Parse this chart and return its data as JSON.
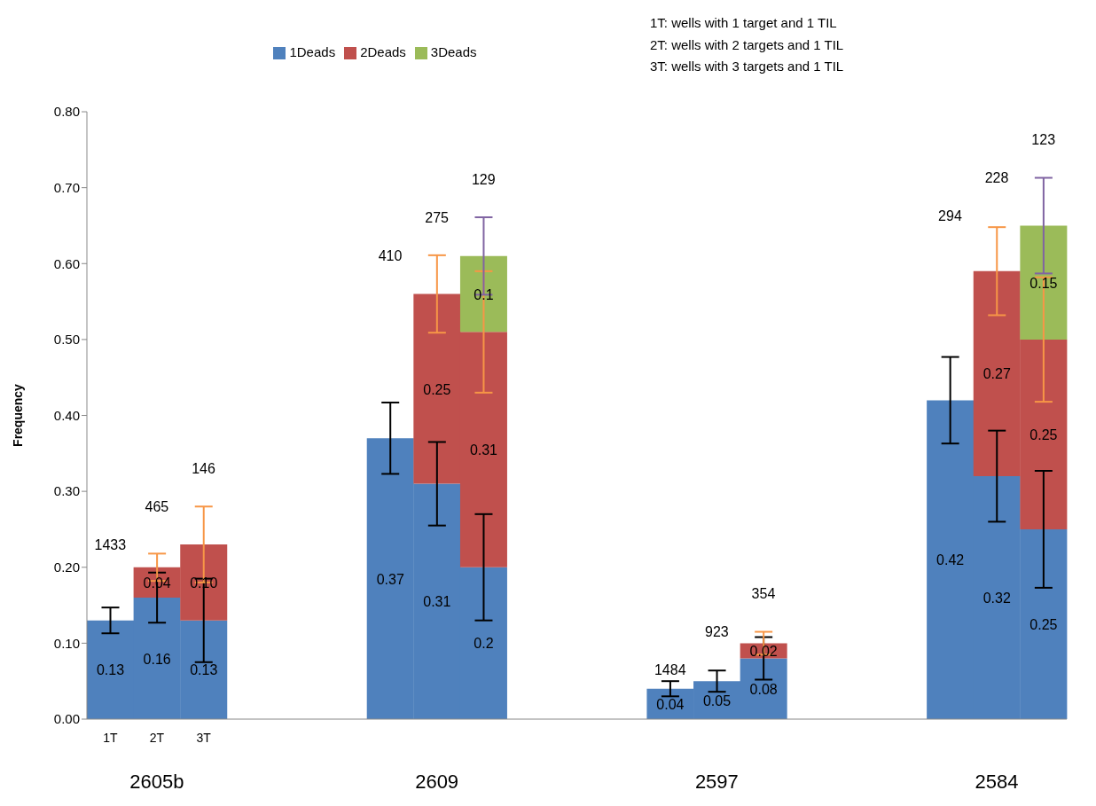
{
  "chart_data": {
    "type": "bar",
    "stacked": true,
    "ylabel": "Frequency",
    "legend": "top",
    "grid": false,
    "categories": [
      "1T",
      "2T",
      "3T",
      null,
      null,
      null,
      null,
      null,
      null,
      null,
      null,
      null,
      null,
      null,
      null,
      null,
      null,
      null,
      null,
      null,
      null
    ],
    "ylim": [
      0,
      0.8
    ],
    "yticks": [
      {
        "value": 0,
        "label": "0.00"
      },
      {
        "value": 0.1,
        "label": "0.10"
      },
      {
        "value": 0.2,
        "label": "0.20"
      },
      {
        "value": 0.3,
        "label": "0.30"
      },
      {
        "value": 0.4,
        "label": "0.40"
      },
      {
        "value": 0.5,
        "label": "0.50"
      },
      {
        "value": 0.6,
        "label": "0.60"
      },
      {
        "value": 0.7,
        "label": "0.70"
      },
      {
        "value": 0.8,
        "label": "0.80"
      }
    ],
    "series": [
      {
        "name": "1Deads",
        "color": "#4f81bd",
        "values": [
          0.13,
          0.16,
          0.13,
          null,
          null,
          null,
          0.37,
          0.31,
          0.2,
          null,
          null,
          null,
          0.04,
          0.05,
          0.08,
          null,
          null,
          null,
          0.42,
          0.32,
          0.25
        ],
        "errors": [
          0.017,
          0.033,
          0.055,
          null,
          null,
          null,
          0.047,
          0.055,
          0.07,
          null,
          null,
          null,
          0.01,
          0.014,
          0.028,
          null,
          null,
          null,
          0.057,
          0.06,
          0.077
        ],
        "value_labels": [
          "0.13",
          "0.16",
          "0.13",
          null,
          null,
          null,
          "0.37",
          "0.31",
          "0.2",
          null,
          null,
          null,
          "0.04",
          "0.05",
          "0.08",
          null,
          null,
          null,
          "0.42",
          "0.32",
          "0.25"
        ]
      },
      {
        "name": "2Deads",
        "color": "#c0504d",
        "values": [
          null,
          0.04,
          0.1,
          null,
          null,
          null,
          null,
          0.25,
          0.31,
          null,
          null,
          null,
          null,
          null,
          0.02,
          null,
          null,
          null,
          null,
          0.27,
          0.25
        ],
        "errors": [
          null,
          0.018,
          0.05,
          null,
          null,
          null,
          null,
          0.051,
          0.08,
          null,
          null,
          null,
          null,
          null,
          0.015,
          null,
          null,
          null,
          null,
          0.058,
          0.082
        ],
        "value_labels": [
          null,
          "0.04",
          "0.10",
          null,
          null,
          null,
          null,
          "0.25",
          "0.31",
          null,
          null,
          null,
          null,
          null,
          "0.02",
          null,
          null,
          null,
          null,
          "0.27",
          "0.25"
        ]
      },
      {
        "name": "3Deads",
        "color": "#9bbb59",
        "values": [
          null,
          null,
          null,
          null,
          null,
          null,
          null,
          null,
          0.1,
          null,
          null,
          null,
          null,
          null,
          null,
          null,
          null,
          null,
          null,
          null,
          0.15
        ],
        "errors": [
          null,
          null,
          null,
          null,
          null,
          null,
          null,
          null,
          0.051,
          null,
          null,
          null,
          null,
          null,
          null,
          null,
          null,
          null,
          null,
          null,
          0.063
        ],
        "value_labels": [
          null,
          null,
          null,
          null,
          null,
          null,
          null,
          null,
          "0.1",
          null,
          null,
          null,
          null,
          null,
          null,
          null,
          null,
          null,
          null,
          null,
          "0.15"
        ]
      }
    ],
    "annotations": [
      "1T: wells with 1 target and 1 TIL",
      "2T: wells with 2 targets and 1 TIL",
      "3T: wells with 3 targets and 1 TIL",
      "2605b",
      "2609",
      "2597",
      "2584",
      "1433",
      "465",
      "146",
      "410",
      "275",
      "129",
      "1484",
      "923",
      "354",
      "294",
      "228",
      "123"
    ]
  }
}
